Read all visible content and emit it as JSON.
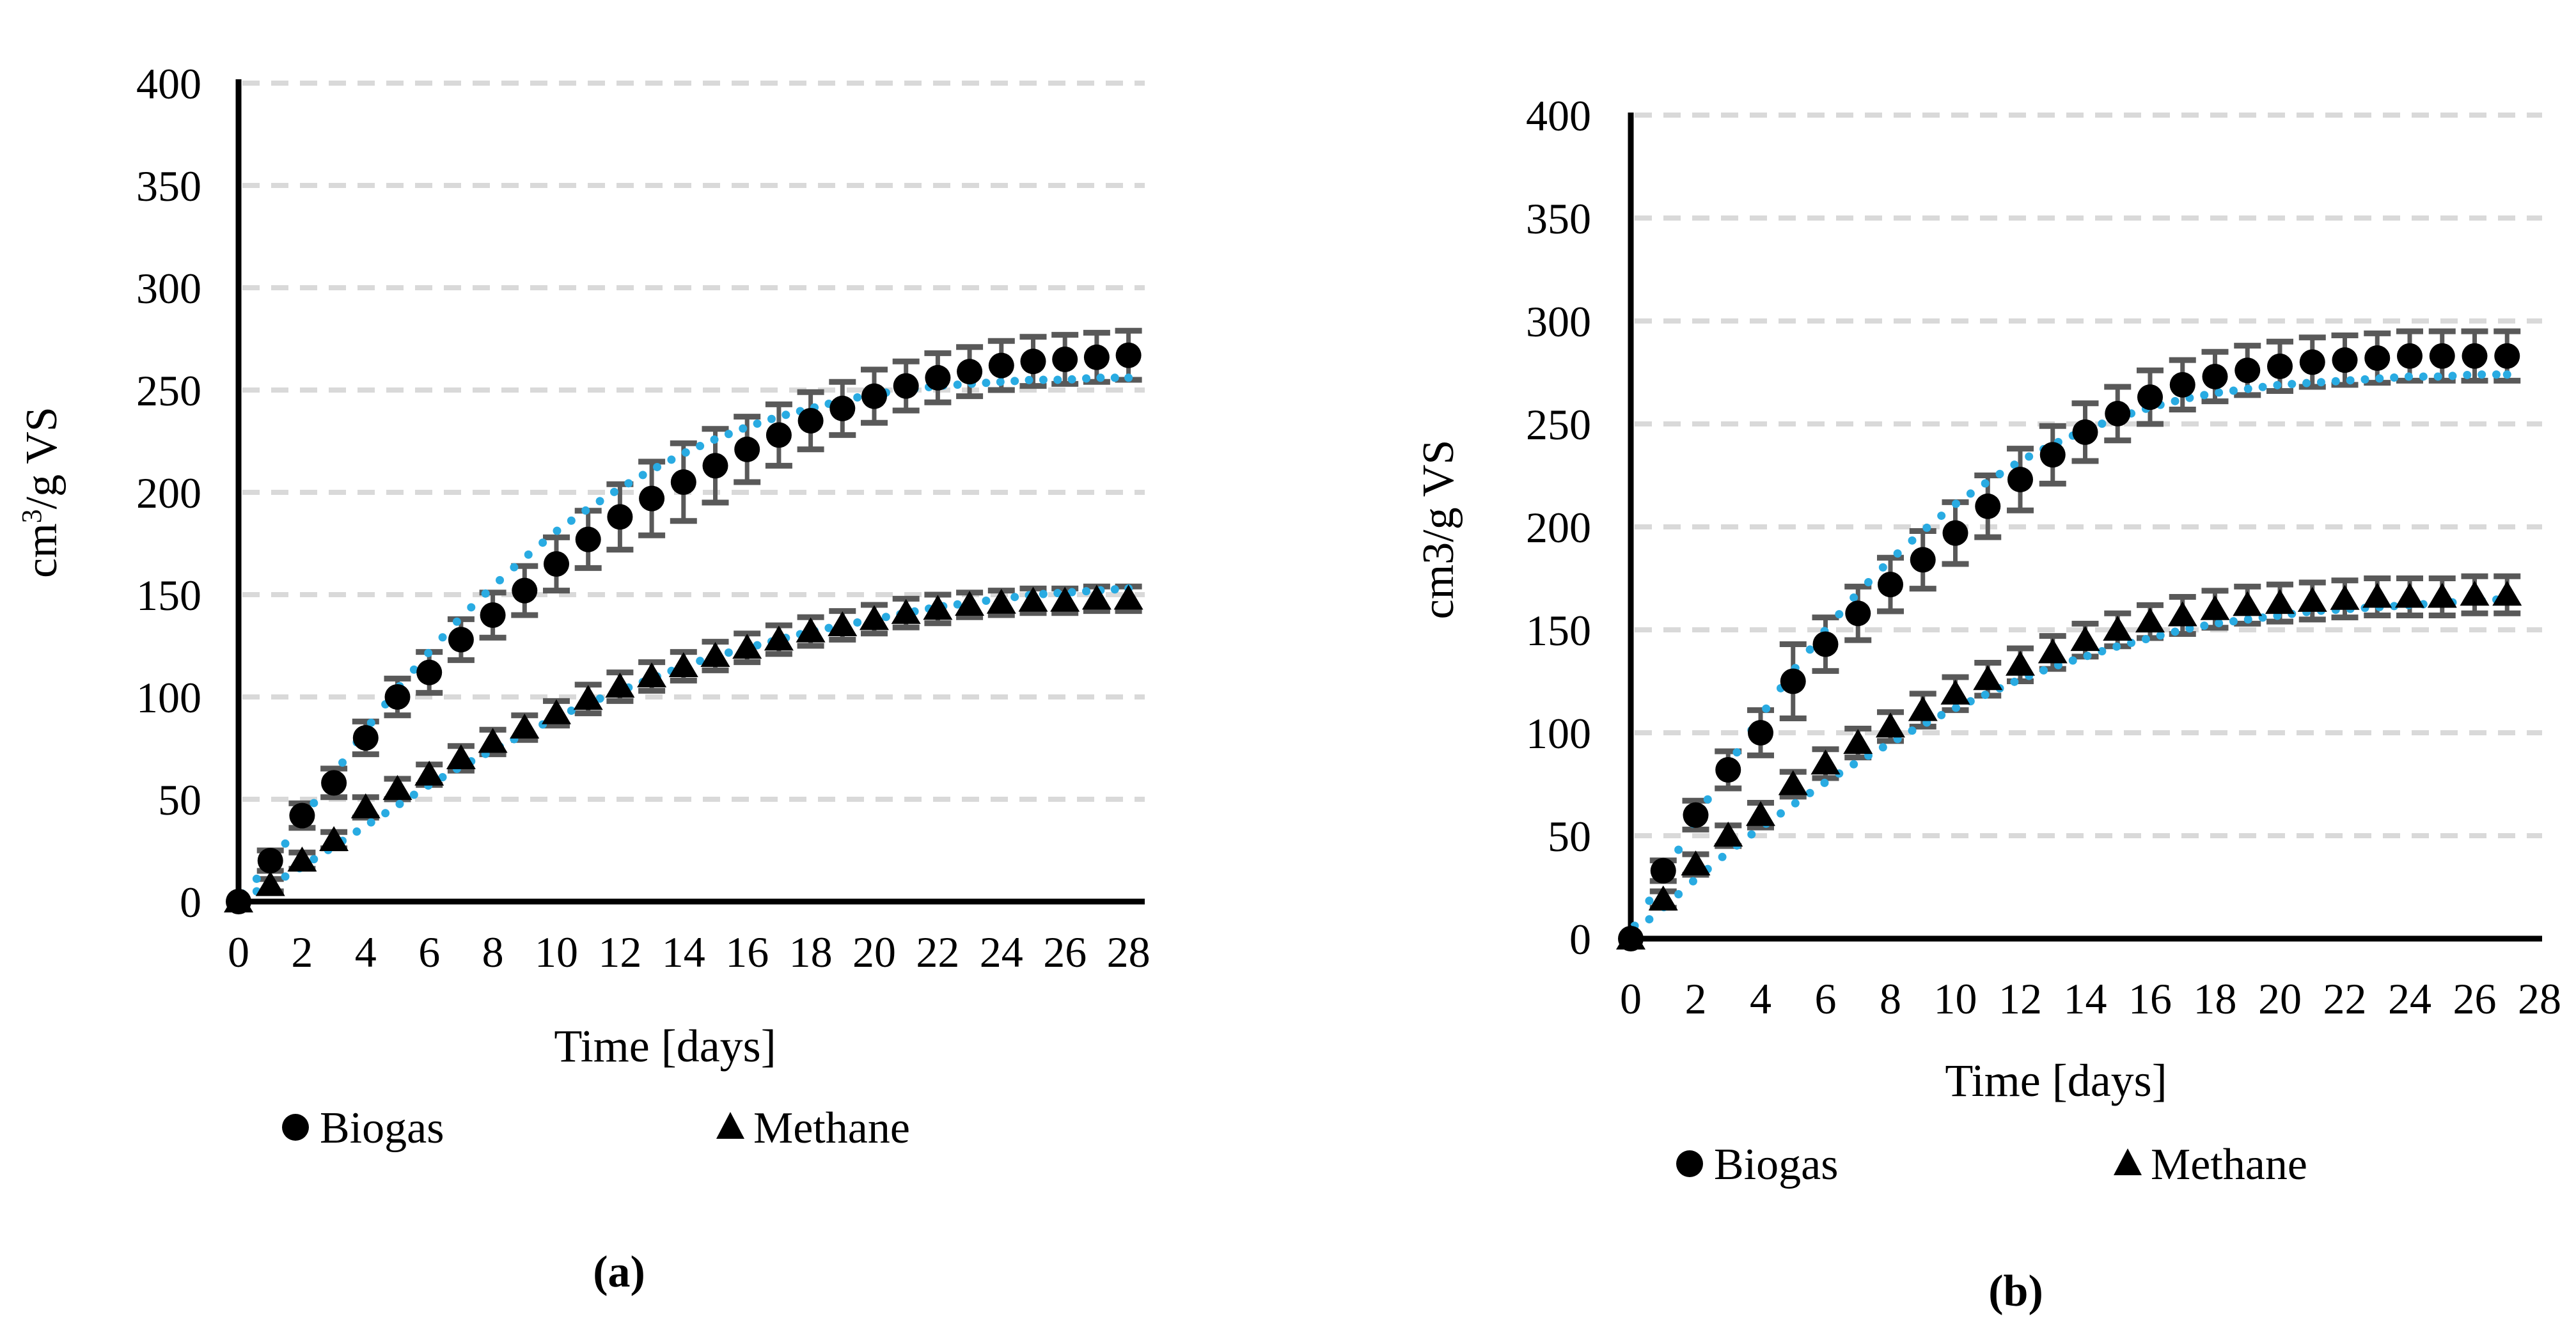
{
  "colors": {
    "marker": "#000000",
    "fit_dots": "#29ABE2",
    "error_bars": "#595959",
    "gridlines": "#D9D9D9",
    "axis": "#000000",
    "text": "#000000",
    "background": "#ffffff"
  },
  "chart_data": [
    {
      "type": "scatter",
      "panel": "a",
      "caption": "(a)",
      "xlabel": "Time [days]",
      "ylabel": "cm3/g VS",
      "ylabel_superscript_3": true,
      "xlim": [
        0,
        28.8
      ],
      "ylim": [
        0,
        400
      ],
      "x_ticks": [
        0,
        2,
        4,
        6,
        8,
        10,
        12,
        14,
        16,
        18,
        20,
        22,
        24,
        26,
        28
      ],
      "y_ticks": [
        0,
        50,
        100,
        150,
        200,
        250,
        300,
        350,
        400
      ],
      "grid": "horizontal-dashed",
      "legend_position": "bottom",
      "days": [
        0,
        1,
        2,
        3,
        4,
        5,
        6,
        7,
        8,
        9,
        10,
        11,
        12,
        13,
        14,
        15,
        16,
        17,
        18,
        19,
        20,
        21,
        22,
        23,
        24,
        25,
        26,
        27,
        28
      ],
      "series": [
        {
          "name": "Biogas",
          "marker": "circle",
          "in_legend": true,
          "values": [
            0,
            20,
            42,
            58,
            80,
            100,
            112,
            128,
            140,
            152,
            165,
            177,
            188,
            197,
            205,
            213,
            221,
            228,
            235,
            241,
            247,
            252,
            256,
            259,
            262,
            264,
            265,
            266,
            267
          ],
          "errors": [
            2,
            5,
            6,
            7,
            8,
            9,
            10,
            10,
            11,
            12,
            13,
            14,
            16,
            18,
            19,
            18,
            16,
            15,
            14,
            13,
            13,
            12,
            12,
            12,
            12,
            12,
            12,
            12,
            12
          ]
        },
        {
          "name": "Methane",
          "marker": "triangle",
          "in_legend": true,
          "values": [
            0,
            8,
            20,
            30,
            46,
            55,
            62,
            70,
            78,
            85,
            92,
            99,
            105,
            110,
            115,
            120,
            124,
            128,
            132,
            135,
            138,
            141,
            143,
            145,
            146,
            147,
            147,
            148,
            148
          ],
          "errors": [
            1,
            3,
            4,
            4,
            5,
            5,
            5,
            6,
            6,
            6,
            6,
            7,
            7,
            7,
            7,
            7,
            7,
            7,
            7,
            7,
            7,
            7,
            7,
            6,
            6,
            6,
            6,
            6,
            6
          ]
        },
        {
          "name": "Biogas model fit",
          "marker": "dotted-curve",
          "in_legend": false,
          "values": [
            2,
            18,
            40,
            62,
            84,
            104,
            122,
            139,
            154,
            168,
            181,
            192,
            202,
            211,
            219,
            226,
            232,
            237,
            241,
            245,
            248,
            250,
            252,
            253,
            254,
            255,
            255,
            256,
            256
          ]
        },
        {
          "name": "Methane model fit",
          "marker": "dotted-curve",
          "in_legend": false,
          "values": [
            1,
            8,
            17,
            27,
            37,
            47,
            57,
            66,
            74,
            82,
            90,
            97,
            103,
            109,
            115,
            120,
            124,
            128,
            132,
            135,
            138,
            141,
            144,
            146,
            148,
            150,
            151,
            152,
            153
          ]
        }
      ]
    },
    {
      "type": "scatter",
      "panel": "b",
      "caption": "(b)",
      "xlabel": "Time [days]",
      "ylabel": "cm3/g VS",
      "ylabel_superscript_3": false,
      "xlim": [
        0,
        28.8
      ],
      "ylim": [
        0,
        400
      ],
      "x_ticks": [
        0,
        2,
        4,
        6,
        8,
        10,
        12,
        14,
        16,
        18,
        20,
        22,
        24,
        26,
        28
      ],
      "y_ticks": [
        0,
        50,
        100,
        150,
        200,
        250,
        300,
        350,
        400
      ],
      "grid": "horizontal-dashed",
      "legend_position": "bottom",
      "days": [
        0,
        1,
        2,
        3,
        4,
        5,
        6,
        7,
        8,
        9,
        10,
        11,
        12,
        13,
        14,
        15,
        16,
        17,
        18,
        19,
        20,
        21,
        22,
        23,
        24,
        25,
        26,
        27
      ],
      "series": [
        {
          "name": "Biogas",
          "marker": "circle",
          "in_legend": true,
          "values": [
            0,
            33,
            60,
            82,
            100,
            125,
            143,
            158,
            172,
            184,
            197,
            210,
            223,
            235,
            246,
            255,
            263,
            269,
            273,
            276,
            278,
            280,
            281,
            282,
            283,
            283,
            283,
            283
          ],
          "errors": [
            2,
            5,
            7,
            9,
            11,
            18,
            13,
            13,
            13,
            14,
            15,
            15,
            15,
            14,
            14,
            13,
            13,
            12,
            12,
            12,
            12,
            12,
            12,
            12,
            12,
            12,
            12,
            12
          ]
        },
        {
          "name": "Methane",
          "marker": "triangle",
          "in_legend": true,
          "values": [
            0,
            19,
            36,
            50,
            60,
            75,
            85,
            95,
            103,
            111,
            119,
            126,
            133,
            139,
            145,
            150,
            154,
            157,
            160,
            162,
            163,
            164,
            165,
            166,
            166,
            166,
            167,
            167
          ],
          "errors": [
            1,
            4,
            5,
            5,
            6,
            6,
            7,
            7,
            7,
            8,
            8,
            8,
            8,
            8,
            8,
            8,
            8,
            9,
            9,
            9,
            9,
            9,
            9,
            9,
            9,
            9,
            9,
            9
          ]
        },
        {
          "name": "Biogas model fit",
          "marker": "dotted-curve",
          "in_legend": false,
          "values": [
            3,
            30,
            58,
            84,
            108,
            130,
            150,
            168,
            184,
            198,
            211,
            222,
            232,
            240,
            247,
            253,
            258,
            262,
            265,
            267,
            269,
            270,
            271,
            272,
            273,
            273,
            274,
            274
          ]
        },
        {
          "name": "Methane model fit",
          "marker": "dotted-curve",
          "in_legend": false,
          "values": [
            2,
            15,
            29,
            42,
            54,
            65,
            76,
            86,
            95,
            104,
            112,
            119,
            126,
            132,
            137,
            142,
            146,
            150,
            153,
            155,
            157,
            159,
            160,
            161,
            162,
            163,
            164,
            165
          ]
        }
      ]
    }
  ]
}
